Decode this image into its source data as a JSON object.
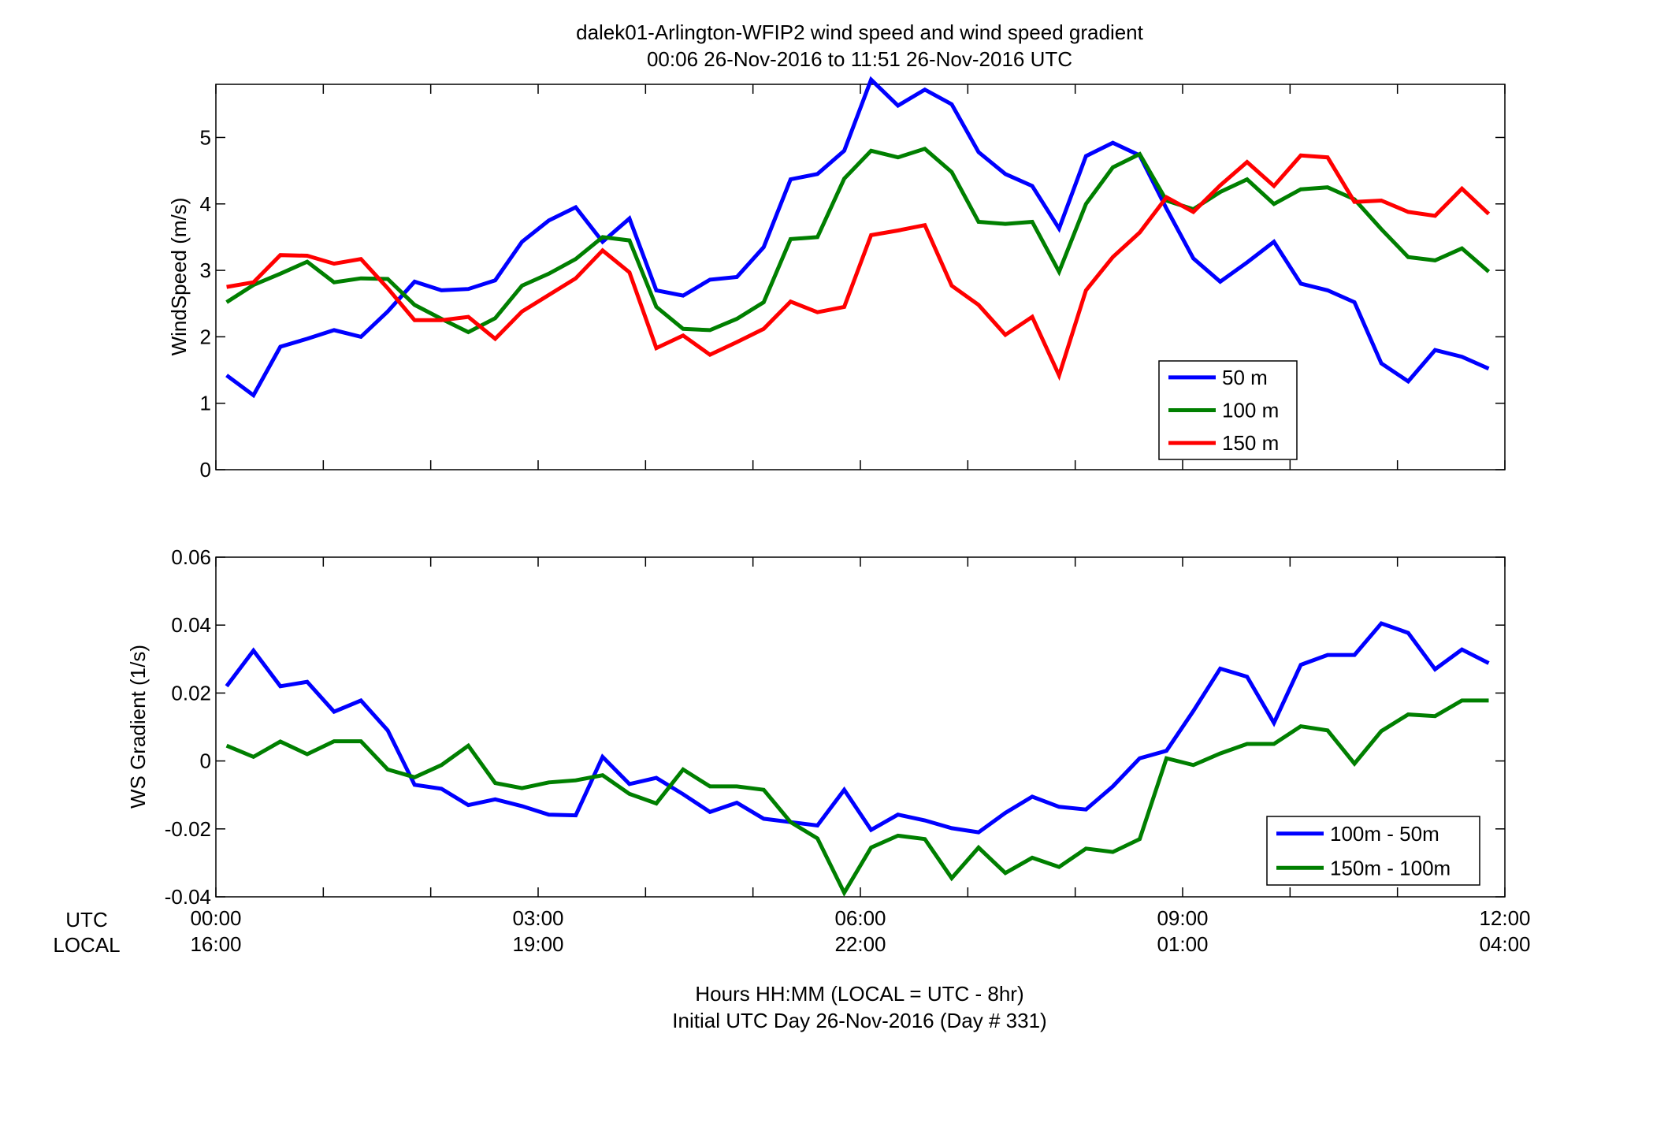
{
  "title_line1": "dalek01-Arlington-WFIP2  wind speed and wind speed gradient",
  "title_line2": "00:06 26-Nov-2016 to 11:51 26-Nov-2016  UTC",
  "xaxis": {
    "row_label_utc": "UTC",
    "row_label_local": "LOCAL",
    "utc_ticks": [
      "00:00",
      "03:00",
      "06:00",
      "09:00",
      "12:00"
    ],
    "local_ticks": [
      "16:00",
      "19:00",
      "22:00",
      "01:00",
      "04:00"
    ],
    "caption_line1": "Hours HH:MM  (LOCAL = UTC - 8hr)",
    "caption_line2": "Initial UTC Day 26-Nov-2016 (Day # 331)"
  },
  "chart_data": [
    {
      "type": "line",
      "ylabel": "WindSpeed (m/s)",
      "xlim": [
        0,
        12
      ],
      "ylim": [
        0,
        5.8
      ],
      "yticks": [
        0,
        1,
        2,
        3,
        4,
        5
      ],
      "xticks_hours": [
        0,
        1,
        2,
        3,
        4,
        5,
        6,
        7,
        8,
        9,
        10,
        11,
        12
      ],
      "x_hours": [
        0.1,
        0.35,
        0.6,
        0.85,
        1.1,
        1.35,
        1.6,
        1.85,
        2.1,
        2.35,
        2.6,
        2.85,
        3.1,
        3.35,
        3.6,
        3.85,
        4.1,
        4.35,
        4.6,
        4.85,
        5.1,
        5.35,
        5.6,
        5.85,
        6.1,
        6.35,
        6.6,
        6.85,
        7.1,
        7.35,
        7.6,
        7.85,
        8.1,
        8.35,
        8.6,
        8.85,
        9.1,
        9.35,
        9.6,
        9.85,
        10.1,
        10.35,
        10.6,
        10.85,
        11.1,
        11.35,
        11.6,
        11.85
      ],
      "legend_position": "bottom-right",
      "series": [
        {
          "name": "50 m",
          "color": "#0000ff",
          "values": [
            1.42,
            1.12,
            1.85,
            1.97,
            2.1,
            2.0,
            2.38,
            2.83,
            2.7,
            2.72,
            2.85,
            3.43,
            3.75,
            3.95,
            3.43,
            3.78,
            2.7,
            2.62,
            2.86,
            2.9,
            3.35,
            4.37,
            4.45,
            4.8,
            5.87,
            5.48,
            5.72,
            5.5,
            4.78,
            4.45,
            4.27,
            3.63,
            4.72,
            4.92,
            4.73,
            3.93,
            3.18,
            2.83,
            3.12,
            3.43,
            2.8,
            2.7,
            2.52,
            1.6,
            1.33,
            1.8,
            1.7,
            1.52
          ]
        },
        {
          "name": "100 m",
          "color": "#007f00",
          "values": [
            2.52,
            2.78,
            2.95,
            3.13,
            2.82,
            2.88,
            2.87,
            2.48,
            2.27,
            2.07,
            2.28,
            2.77,
            2.95,
            3.17,
            3.5,
            3.45,
            2.45,
            2.12,
            2.1,
            2.27,
            2.52,
            3.47,
            3.5,
            4.38,
            4.8,
            4.7,
            4.83,
            4.48,
            3.73,
            3.7,
            3.73,
            2.98,
            4.0,
            4.55,
            4.75,
            4.05,
            3.92,
            4.18,
            4.37,
            4.0,
            4.22,
            4.25,
            4.07,
            3.62,
            3.2,
            3.15,
            3.33,
            2.98
          ]
        },
        {
          "name": "150 m",
          "color": "#ff0000",
          "values": [
            2.75,
            2.82,
            3.23,
            3.22,
            3.1,
            3.17,
            2.73,
            2.25,
            2.25,
            2.3,
            1.97,
            2.38,
            2.63,
            2.88,
            3.3,
            2.97,
            1.83,
            2.02,
            1.73,
            1.92,
            2.12,
            2.53,
            2.37,
            2.45,
            3.53,
            3.6,
            3.68,
            2.77,
            2.48,
            2.03,
            2.3,
            1.42,
            2.7,
            3.2,
            3.57,
            4.1,
            3.88,
            4.28,
            4.63,
            4.27,
            4.73,
            4.7,
            4.03,
            4.05,
            3.88,
            3.82,
            4.23,
            3.85
          ]
        }
      ]
    },
    {
      "type": "line",
      "ylabel": "WS Gradient (1/s)",
      "xlim": [
        0,
        12
      ],
      "ylim": [
        -0.04,
        0.06
      ],
      "yticks": [
        -0.04,
        -0.02,
        0,
        0.02,
        0.04,
        0.06
      ],
      "ytick_labels": [
        "-0.04",
        "-0.02",
        "0",
        "0.02",
        "0.04",
        "0.06"
      ],
      "xticks_hours": [
        0,
        1,
        2,
        3,
        4,
        5,
        6,
        7,
        8,
        9,
        10,
        11,
        12
      ],
      "x_hours": [
        0.1,
        0.35,
        0.6,
        0.85,
        1.1,
        1.35,
        1.6,
        1.85,
        2.1,
        2.35,
        2.6,
        2.85,
        3.1,
        3.35,
        3.6,
        3.85,
        4.1,
        4.35,
        4.6,
        4.85,
        5.1,
        5.35,
        5.6,
        5.85,
        6.1,
        6.35,
        6.6,
        6.85,
        7.1,
        7.35,
        7.6,
        7.85,
        8.1,
        8.35,
        8.6,
        8.85,
        9.1,
        9.35,
        9.6,
        9.85,
        10.1,
        10.35,
        10.6,
        10.85,
        11.1,
        11.35,
        11.6,
        11.85
      ],
      "legend_position": "bottom-right",
      "series": [
        {
          "name": "100m - 50m",
          "color": "#0000ff",
          "values": [
            0.022,
            0.0325,
            0.022,
            0.0233,
            0.0145,
            0.0178,
            0.009,
            -0.007,
            -0.0082,
            -0.013,
            -0.0113,
            -0.0133,
            -0.0158,
            -0.016,
            0.0012,
            -0.0068,
            -0.005,
            -0.0098,
            -0.015,
            -0.0123,
            -0.017,
            -0.018,
            -0.019,
            -0.0085,
            -0.0203,
            -0.0158,
            -0.0175,
            -0.0198,
            -0.021,
            -0.0153,
            -0.0105,
            -0.0135,
            -0.0143,
            -0.0075,
            0.0008,
            0.003,
            0.0147,
            0.0272,
            0.0248,
            0.0112,
            0.0283,
            0.0312,
            0.0312,
            0.0405,
            0.0377,
            0.027,
            0.0328,
            0.0288
          ]
        },
        {
          "name": "150m - 100m",
          "color": "#007f00",
          "values": [
            0.0045,
            0.0012,
            0.0057,
            0.002,
            0.0058,
            0.0058,
            -0.0025,
            -0.0048,
            -0.0012,
            0.0045,
            -0.0065,
            -0.008,
            -0.0063,
            -0.0057,
            -0.0042,
            -0.0097,
            -0.0125,
            -0.0025,
            -0.0075,
            -0.0075,
            -0.0085,
            -0.018,
            -0.0228,
            -0.0388,
            -0.0255,
            -0.022,
            -0.023,
            -0.0345,
            -0.0255,
            -0.033,
            -0.0285,
            -0.0312,
            -0.0258,
            -0.0268,
            -0.023,
            0.0008,
            -0.0012,
            0.0022,
            0.005,
            0.005,
            0.0102,
            0.009,
            -0.0008,
            0.0088,
            0.0137,
            0.0132,
            0.0178,
            0.0178
          ]
        }
      ]
    }
  ]
}
